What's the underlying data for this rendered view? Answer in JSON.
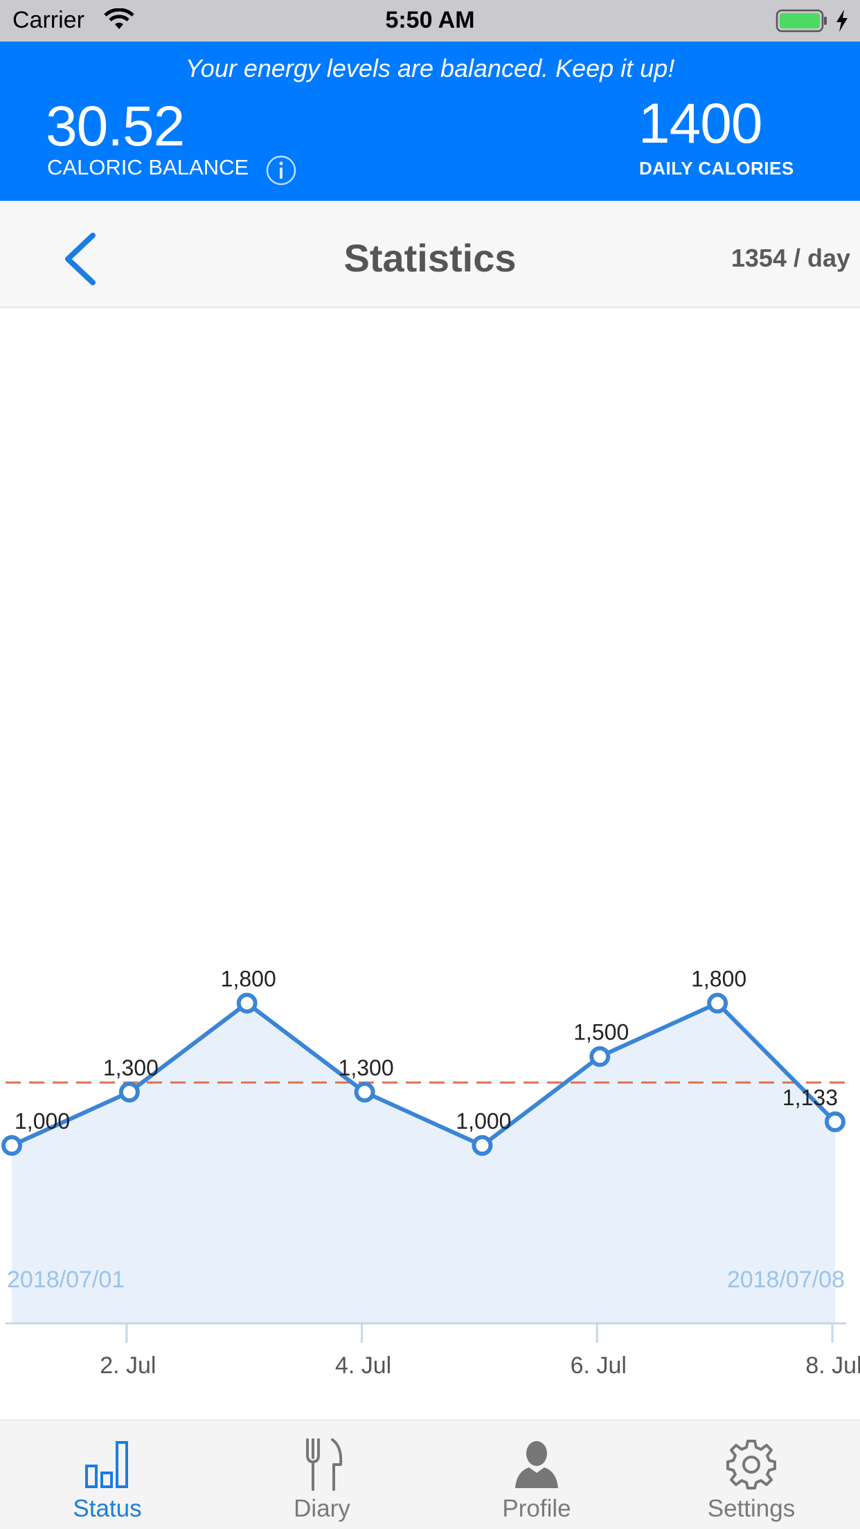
{
  "status_bar": {
    "carrier": "Carrier",
    "time": "5:50 AM"
  },
  "banner": {
    "message": "Your energy levels are balanced. Keep it up!",
    "balance_value": "30.52",
    "balance_label": "CALORIC BALANCE",
    "daily_value": "1400",
    "daily_label": "DAILY CALORIES",
    "color": "#007aff"
  },
  "nav": {
    "title": "Statistics",
    "rate": "1354 / day"
  },
  "chart_data": {
    "type": "area",
    "x": [
      "2018/07/01",
      "2018/07/02",
      "2018/07/03",
      "2018/07/04",
      "2018/07/05",
      "2018/07/06",
      "2018/07/07",
      "2018/07/08"
    ],
    "values": [
      1000,
      1300,
      1800,
      1300,
      1000,
      1500,
      1800,
      1133
    ],
    "data_labels": [
      "1,000",
      "1,300",
      "1,800",
      "1,300",
      "1,000",
      "1,500",
      "1,800",
      "1,133"
    ],
    "x_tick_labels": [
      "2. Jul",
      "4. Jul",
      "6. Jul",
      "8. Jul"
    ],
    "x_tick_indices": [
      1,
      3,
      5,
      7
    ],
    "range_start_label": "2018/07/01",
    "range_end_label": "2018/07/08",
    "reference_line": 1354,
    "ylim": [
      0,
      5700
    ],
    "line_color": "#3a85d6",
    "fill_color": "#e8f1fb",
    "reference_color": "#e07050"
  },
  "tabs": [
    {
      "label": "Status",
      "icon": "bar-chart-icon",
      "active": true
    },
    {
      "label": "Diary",
      "icon": "fork-knife-icon",
      "active": false
    },
    {
      "label": "Profile",
      "icon": "person-icon",
      "active": false
    },
    {
      "label": "Settings",
      "icon": "gear-icon",
      "active": false
    }
  ]
}
